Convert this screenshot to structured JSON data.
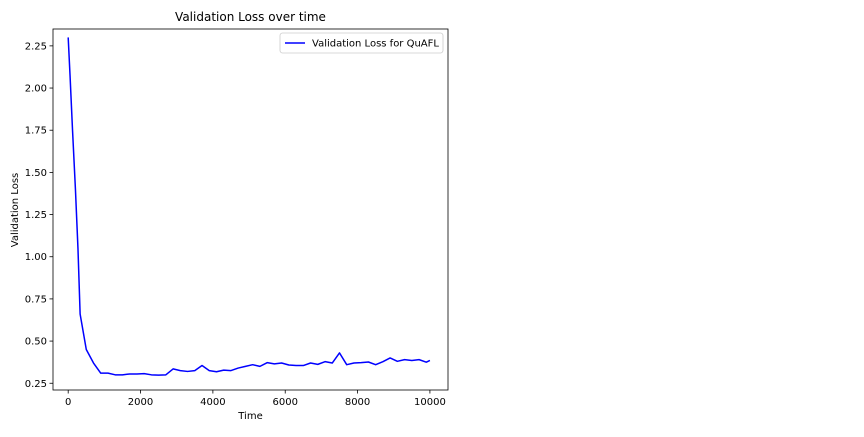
{
  "chart_data": {
    "type": "line",
    "title": "Validation Loss over time",
    "xlabel": "Time",
    "ylabel": "Validation Loss",
    "xlim": [
      -420,
      10500
    ],
    "ylim": [
      0.21,
      2.35
    ],
    "xticks": [
      0,
      2000,
      4000,
      6000,
      8000,
      10000
    ],
    "xtick_labels": [
      "0",
      "2000",
      "4000",
      "6000",
      "8000",
      "10000"
    ],
    "yticks": [
      0.25,
      0.5,
      0.75,
      1.0,
      1.25,
      1.5,
      1.75,
      2.0,
      2.25
    ],
    "ytick_labels": [
      "0.25",
      "0.50",
      "0.75",
      "1.00",
      "1.25",
      "1.50",
      "1.75",
      "2.00",
      "2.25"
    ],
    "grid": false,
    "legend_position": "upper right",
    "series": [
      {
        "name": "Validation Loss for QuAFL",
        "color": "#0000ff",
        "x": [
          0,
          50,
          120,
          200,
          270,
          330,
          500,
          700,
          900,
          1100,
          1300,
          1500,
          1700,
          1900,
          2100,
          2300,
          2500,
          2700,
          2900,
          3100,
          3300,
          3500,
          3700,
          3900,
          4100,
          4300,
          4500,
          4700,
          4900,
          5100,
          5300,
          5500,
          5700,
          5900,
          6100,
          6300,
          6500,
          6700,
          6900,
          7100,
          7300,
          7500,
          7700,
          7900,
          8100,
          8300,
          8500,
          8700,
          8900,
          9100,
          9300,
          9500,
          9700,
          9900,
          10000
        ],
        "y": [
          2.3,
          2.08,
          1.75,
          1.4,
          1.05,
          0.66,
          0.45,
          0.37,
          0.31,
          0.31,
          0.3,
          0.3,
          0.305,
          0.305,
          0.307,
          0.3,
          0.298,
          0.3,
          0.335,
          0.325,
          0.32,
          0.325,
          0.355,
          0.325,
          0.318,
          0.328,
          0.325,
          0.34,
          0.35,
          0.36,
          0.35,
          0.372,
          0.365,
          0.37,
          0.358,
          0.355,
          0.355,
          0.37,
          0.362,
          0.378,
          0.37,
          0.43,
          0.36,
          0.37,
          0.372,
          0.376,
          0.36,
          0.378,
          0.4,
          0.38,
          0.39,
          0.385,
          0.39,
          0.375,
          0.385
        ]
      }
    ]
  }
}
